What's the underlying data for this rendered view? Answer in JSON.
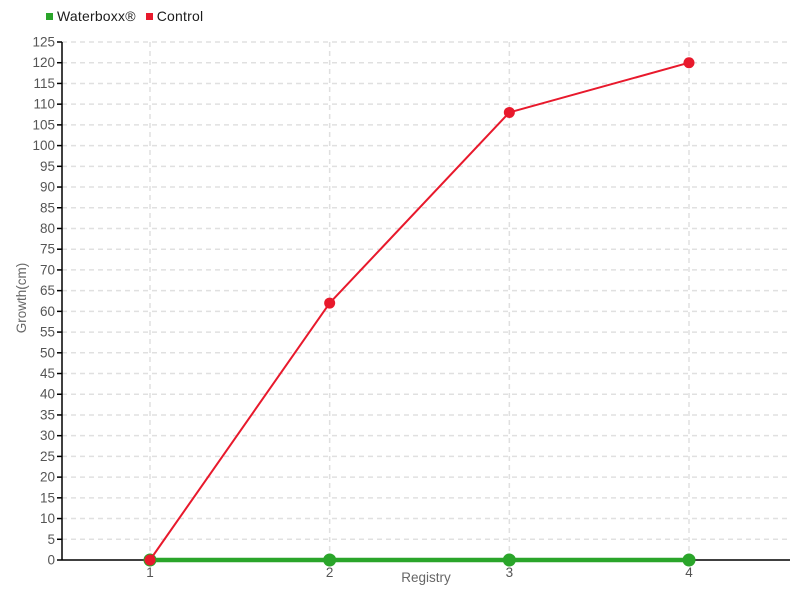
{
  "legend": {
    "items": [
      {
        "label": "Waterboxx®",
        "color": "#2aa52a"
      },
      {
        "label": "Control",
        "color": "#e8192c"
      }
    ]
  },
  "chart_data": {
    "type": "line",
    "title": "",
    "x": [
      1,
      2,
      3,
      4
    ],
    "xtick_labels": [
      "1",
      "2",
      "3",
      "4"
    ],
    "series": [
      {
        "name": "Waterboxx®",
        "color": "#2aa52a",
        "values": [
          0,
          0,
          0,
          0
        ],
        "line_width": 4.5,
        "marker_radius": 6.5
      },
      {
        "name": "Control",
        "color": "#e8192c",
        "values": [
          0,
          62,
          108,
          120
        ],
        "line_width": 2,
        "marker_radius": 5.5
      }
    ],
    "xlabel": "Registry",
    "ylabel": "Growth(cm)",
    "ylim": [
      0,
      125
    ],
    "ytick_step": 5,
    "grid": true,
    "gridline_style": "dashed",
    "legend_position": "top-left",
    "colors": {
      "axis": "#000000",
      "gridline": "#e0e0e0",
      "tick_label": "#555555",
      "axis_title": "#666666",
      "background": "#ffffff"
    }
  }
}
